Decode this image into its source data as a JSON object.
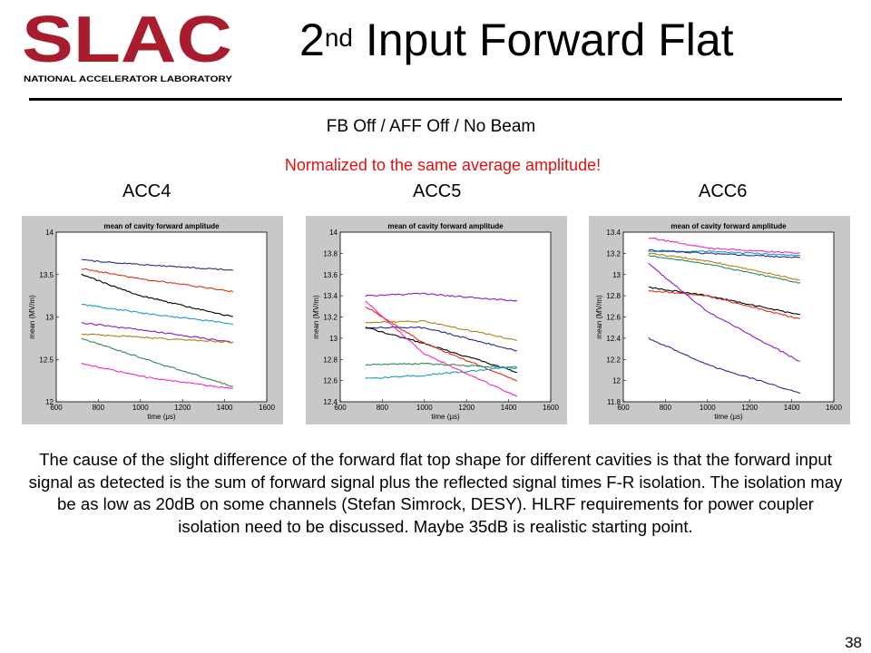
{
  "logo": {
    "text": "SLAC",
    "subtext": "NATIONAL ACCELERATOR LABORATORY",
    "color": "#a81c2e"
  },
  "title": {
    "main": "2",
    "sup": "nd",
    "rest": " Input Forward Flat"
  },
  "subtitle": "FB Off / AFF Off / No Beam",
  "note": "Normalized to the same average amplitude!",
  "page_number": "38",
  "body_text": "The cause of the slight difference of the forward flat top shape for different cavities is that the forward input signal as detected is the sum of forward signal plus the reflected signal times F-R isolation. The isolation may be as low as 20dB on some channels (Stefan Simrock, DESY).  HLRF requirements for power coupler isolation need to be discussed.  Maybe 35dB is realistic starting point.",
  "chart_data": [
    {
      "type": "line",
      "label": "ACC4",
      "title": "mean of cavity forward amplitude",
      "xlabel": "time (μs)",
      "ylabel": "mean (MV/m)",
      "xlim": [
        600,
        1600
      ],
      "ylim": [
        12,
        14
      ],
      "xticks": [
        "600",
        "800",
        "1000",
        "1200",
        "1400",
        "1600"
      ],
      "yticks": [
        "12",
        "12.5",
        "13",
        "13.5",
        "14"
      ],
      "grid": false,
      "series": [
        {
          "color": "#1f2f8f",
          "x": [
            720,
            1000,
            1440
          ],
          "y": [
            13.67,
            13.62,
            13.55
          ]
        },
        {
          "color": "#e03010",
          "x": [
            720,
            1000,
            1440
          ],
          "y": [
            13.57,
            13.45,
            13.3
          ]
        },
        {
          "color": "#000000",
          "x": [
            720,
            1000,
            1440
          ],
          "y": [
            13.5,
            13.25,
            13.0
          ]
        },
        {
          "color": "#1a9ac8",
          "x": [
            720,
            1000,
            1440
          ],
          "y": [
            13.15,
            13.05,
            12.92
          ]
        },
        {
          "color": "#8a1ac8",
          "x": [
            720,
            1000,
            1440
          ],
          "y": [
            12.93,
            12.85,
            12.7
          ]
        },
        {
          "color": "#b08010",
          "x": [
            720,
            1000,
            1440
          ],
          "y": [
            12.8,
            12.76,
            12.7
          ]
        },
        {
          "color": "#2a8a5a",
          "x": [
            720,
            1000,
            1440
          ],
          "y": [
            12.75,
            12.52,
            12.18
          ]
        },
        {
          "color": "#ff20c0",
          "x": [
            720,
            1000,
            1440
          ],
          "y": [
            12.45,
            12.3,
            12.15
          ]
        }
      ]
    },
    {
      "type": "line",
      "label": "ACC5",
      "title": "mean of cavity forward amplitude",
      "xlabel": "time (μs)",
      "ylabel": "mean (MV/m)",
      "xlim": [
        600,
        1600
      ],
      "ylim": [
        12.4,
        14
      ],
      "xticks": [
        "600",
        "800",
        "1000",
        "1200",
        "1400",
        "1600"
      ],
      "yticks": [
        "12.4",
        "12.6",
        "12.8",
        "13",
        "13.2",
        "13.4",
        "13.6",
        "13.8",
        "14"
      ],
      "grid": false,
      "series": [
        {
          "color": "#8a1ac8",
          "x": [
            720,
            1000,
            1440
          ],
          "y": [
            13.4,
            13.42,
            13.35
          ]
        },
        {
          "color": "#b08010",
          "x": [
            720,
            1000,
            1440
          ],
          "y": [
            13.15,
            13.16,
            12.98
          ]
        },
        {
          "color": "#1f2f8f",
          "x": [
            720,
            1000,
            1440
          ],
          "y": [
            13.1,
            13.1,
            12.88
          ]
        },
        {
          "color": "#000000",
          "x": [
            720,
            1000,
            1440
          ],
          "y": [
            13.1,
            12.95,
            12.68
          ]
        },
        {
          "color": "#e03010",
          "x": [
            720,
            1000,
            1440
          ],
          "y": [
            13.3,
            12.95,
            12.6
          ]
        },
        {
          "color": "#ff20c0",
          "x": [
            720,
            1000,
            1440
          ],
          "y": [
            13.35,
            12.85,
            12.45
          ]
        },
        {
          "color": "#2a8a5a",
          "x": [
            720,
            1000,
            1440
          ],
          "y": [
            12.75,
            12.76,
            12.72
          ]
        },
        {
          "color": "#1a9ac8",
          "x": [
            720,
            1000,
            1440
          ],
          "y": [
            12.62,
            12.65,
            12.73
          ]
        }
      ]
    },
    {
      "type": "line",
      "label": "ACC6",
      "title": "mean of cavity forward amplitude",
      "xlabel": "time (μs)",
      "ylabel": "mean (MV/m)",
      "xlim": [
        600,
        1600
      ],
      "ylim": [
        11.8,
        13.4
      ],
      "xticks": [
        "600",
        "800",
        "1000",
        "1200",
        "1400",
        "1600"
      ],
      "yticks": [
        "11.8",
        "12",
        "12.2",
        "12.4",
        "12.6",
        "12.8",
        "13",
        "13.2",
        "13.4"
      ],
      "grid": false,
      "series": [
        {
          "color": "#ff20c0",
          "x": [
            720,
            1000,
            1440
          ],
          "y": [
            13.35,
            13.25,
            13.2
          ]
        },
        {
          "color": "#1a9ac8",
          "x": [
            720,
            1000,
            1440
          ],
          "y": [
            13.22,
            13.22,
            13.18
          ]
        },
        {
          "color": "#1f2f8f",
          "x": [
            720,
            1000,
            1440
          ],
          "y": [
            13.23,
            13.2,
            13.16
          ]
        },
        {
          "color": "#b08010",
          "x": [
            720,
            1000,
            1440
          ],
          "y": [
            13.2,
            13.13,
            12.95
          ]
        },
        {
          "color": "#2a8a5a",
          "x": [
            720,
            1000,
            1440
          ],
          "y": [
            13.18,
            13.1,
            12.92
          ]
        },
        {
          "color": "#000000",
          "x": [
            720,
            1000,
            1440
          ],
          "y": [
            12.88,
            12.8,
            12.62
          ]
        },
        {
          "color": "#e03010",
          "x": [
            720,
            1000,
            1440
          ],
          "y": [
            12.85,
            12.8,
            12.58
          ]
        },
        {
          "color": "#8a1ac8",
          "x": [
            720,
            1000,
            1440
          ],
          "y": [
            13.1,
            12.65,
            12.18
          ]
        },
        {
          "color": "#1f2f8f",
          "x": [
            720,
            1000,
            1440
          ],
          "y": [
            12.4,
            12.15,
            11.88
          ]
        }
      ]
    }
  ]
}
